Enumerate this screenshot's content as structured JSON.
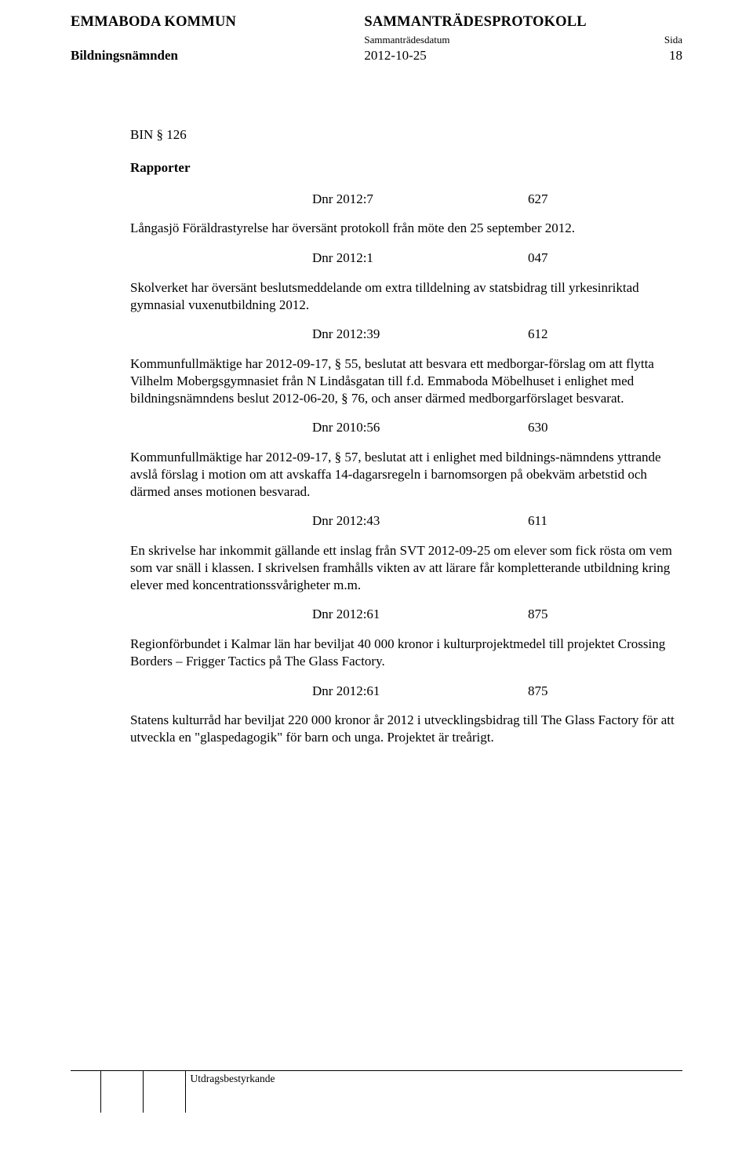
{
  "header": {
    "org": "EMMABODA KOMMUN",
    "board": "Bildningsnämnden",
    "title": "SAMMANTRÄDESPROTOKOLL",
    "sub_date_label": "Sammanträdesdatum",
    "sub_page_label": "Sida",
    "date": "2012-10-25",
    "page": "18"
  },
  "bin": "BIN § 126",
  "section_title": "Rapporter",
  "entries": [
    {
      "dnr": "Dnr 2012:7",
      "code": "627",
      "text": "Långasjö Föräldrastyrelse har översänt protokoll från möte den 25 september 2012."
    },
    {
      "dnr": "Dnr 2012:1",
      "code": "047",
      "text": "Skolverket har översänt beslutsmeddelande om extra tilldelning av statsbidrag till yrkesinriktad gymnasial vuxenutbildning 2012."
    },
    {
      "dnr": "Dnr 2012:39",
      "code": "612",
      "text": "Kommunfullmäktige har 2012-09-17, § 55, beslutat att besvara ett medborgar-förslag om att flytta Vilhelm Mobergsgymnasiet från N Lindåsgatan till f.d. Emmaboda Möbelhuset i enlighet med bildningsnämndens beslut 2012-06-20, § 76, och anser därmed medborgarförslaget besvarat."
    },
    {
      "dnr": "Dnr 2010:56",
      "code": "630",
      "text": "Kommunfullmäktige har 2012-09-17, § 57, beslutat att i enlighet med bildnings-nämndens yttrande avslå förslag i motion om att avskaffa 14-dagarsregeln i barnomsorgen på obekväm arbetstid och därmed anses motionen besvarad."
    },
    {
      "dnr": "Dnr 2012:43",
      "code": "611",
      "text": "En skrivelse har inkommit gällande ett inslag från SVT 2012-09-25 om elever som fick rösta om vem som var snäll i klassen. I skrivelsen framhålls vikten av att lärare får kompletterande utbildning kring elever med koncentrationssvårigheter m.m."
    },
    {
      "dnr": "Dnr 2012:61",
      "code": "875",
      "text": "Regionförbundet i Kalmar län har beviljat 40 000 kronor i kulturprojektmedel till projektet Crossing Borders – Frigger Tactics på The Glass Factory."
    },
    {
      "dnr": "Dnr 2012:61",
      "code": "875",
      "text": "Statens kulturråd har beviljat 220 000 kronor år 2012 i utvecklingsbidrag till The Glass Factory för att utveckla en \"glaspedagogik\" för barn och unga. Projektet är treårigt."
    }
  ],
  "footer_label": "Utdragsbestyrkande"
}
